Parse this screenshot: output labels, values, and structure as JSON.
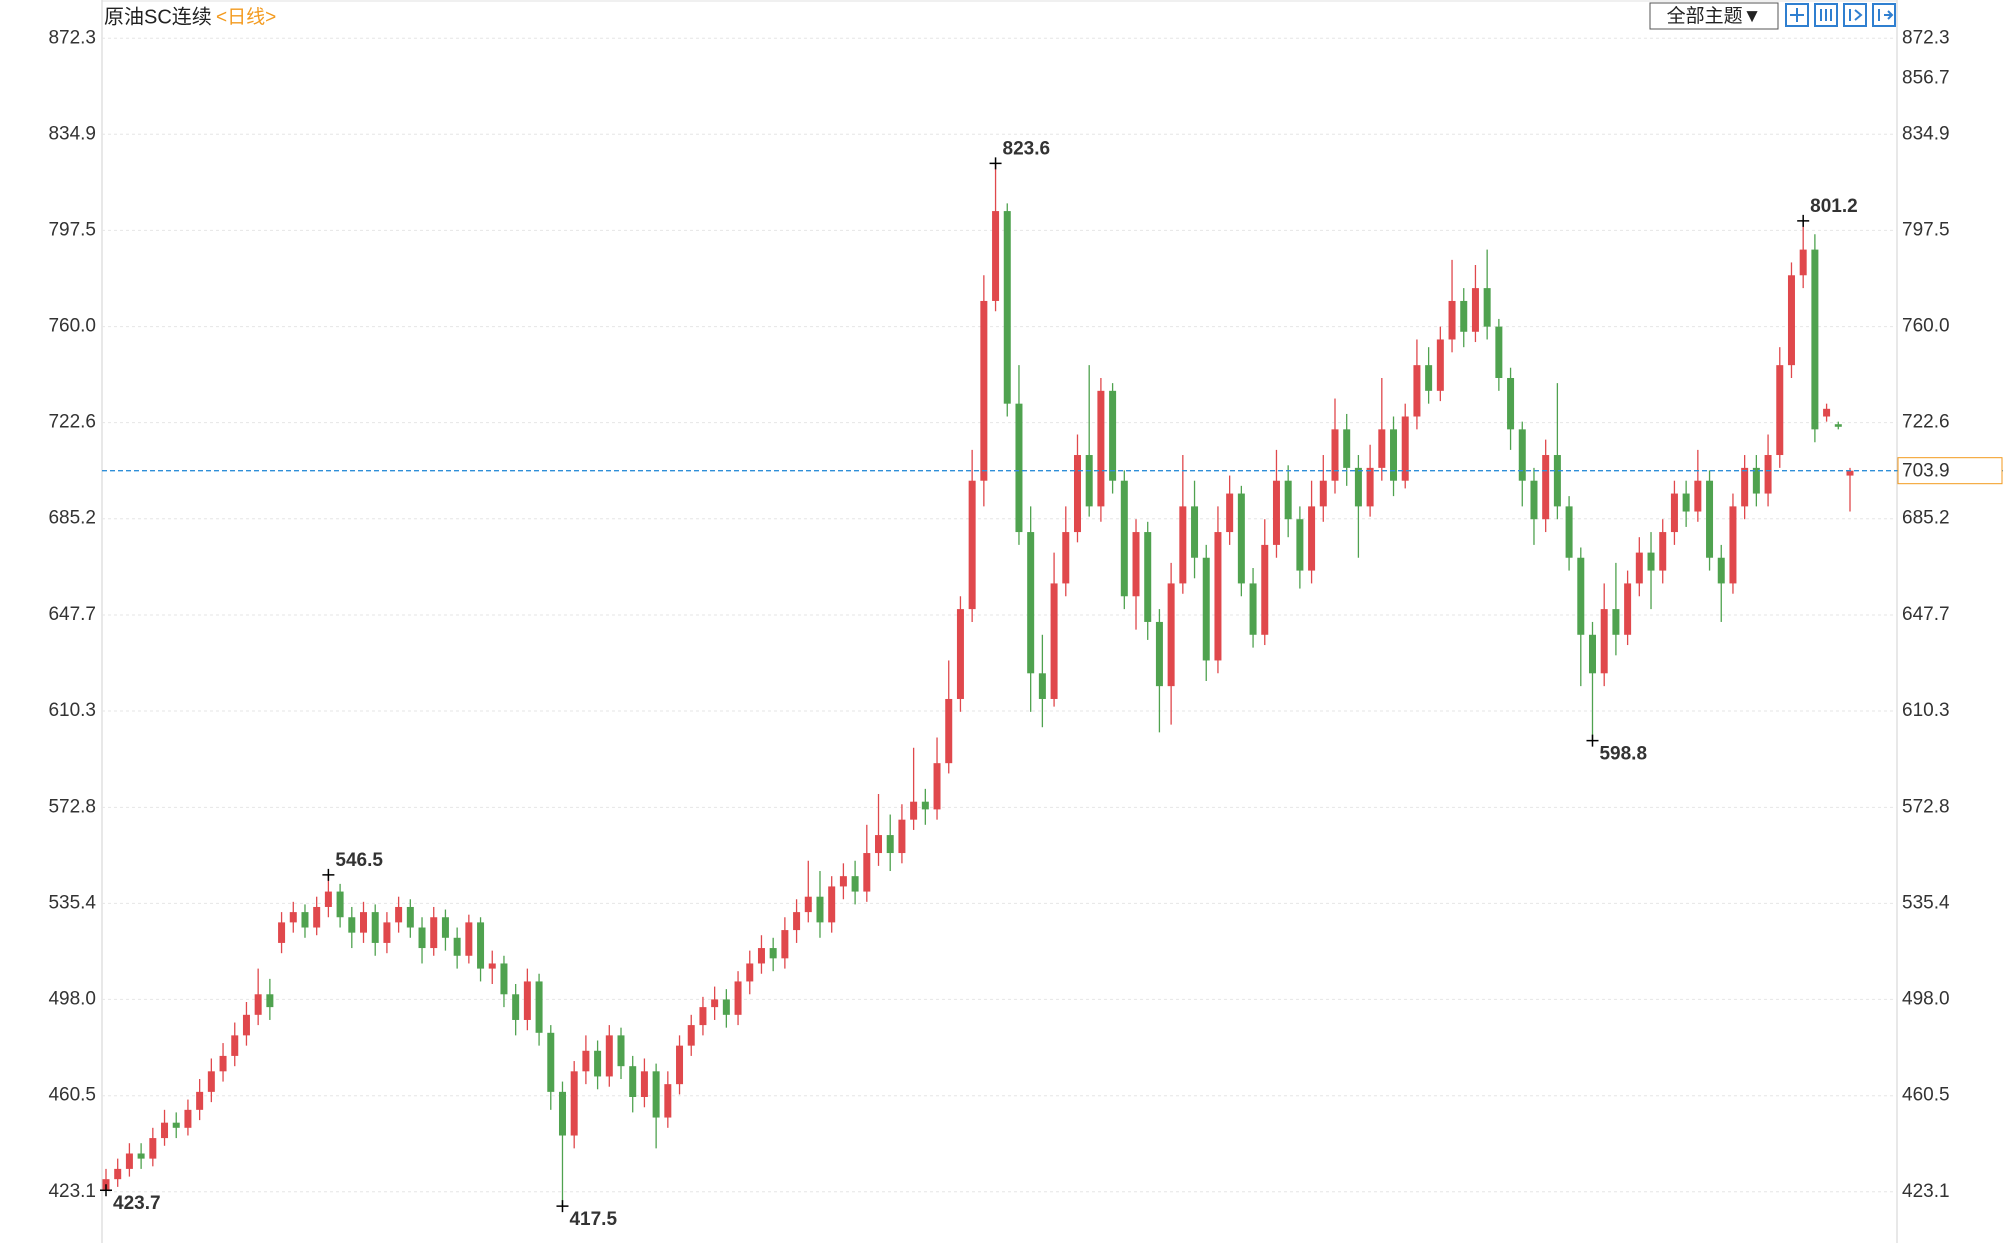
{
  "chart_data": {
    "type": "candlestick",
    "title": "原油SC连续",
    "period": "<日线>",
    "theme_button": "全部主题▼",
    "up_color": "#e0484c",
    "down_color": "#4fa24f",
    "price_line_color": "#2f8fd8",
    "price_box_color": "#f39a1e",
    "ylim": [
      404.7,
      887.2
    ],
    "yticks": [
      423.1,
      460.5,
      {
        "value": 498,
        "label": "498.0"
      },
      535.4,
      572.8,
      610.3,
      647.7,
      685.2,
      722.6,
      {
        "value": 760,
        "label": "760.0"
      },
      797.5,
      834.9,
      872.3
    ],
    "grid": true,
    "last_price": 703.9,
    "marker_price": 856.7,
    "high_labels": [
      546.5,
      823.6,
      801.2
    ],
    "low_labels": [
      423.7,
      417.5,
      598.8
    ],
    "open": [
      424,
      428,
      432,
      438,
      436,
      444,
      450,
      448,
      455,
      462,
      470,
      476,
      484,
      492,
      500,
      520,
      528,
      532,
      526,
      534,
      540,
      530,
      524,
      532,
      520,
      528,
      534,
      526,
      518,
      530,
      522,
      515,
      528,
      510,
      512,
      500,
      490,
      505,
      485,
      462,
      445,
      470,
      478,
      468,
      484,
      472,
      460,
      470,
      452,
      465,
      480,
      488,
      495,
      498,
      492,
      505,
      512,
      518,
      514,
      525,
      532,
      538,
      528,
      542,
      546,
      540,
      555,
      562,
      555,
      568,
      575,
      572,
      590,
      615,
      650,
      700,
      770,
      805,
      730,
      680,
      625,
      615,
      660,
      680,
      710,
      690,
      735,
      700,
      655,
      680,
      645,
      620,
      660,
      690,
      670,
      630,
      680,
      695,
      660,
      640,
      675,
      700,
      685,
      665,
      690,
      700,
      720,
      705,
      690,
      705,
      720,
      700,
      725,
      745,
      735,
      755,
      770,
      758,
      775,
      760,
      740,
      720,
      700,
      685,
      710,
      690,
      670,
      640,
      625,
      650,
      640,
      660,
      672,
      665,
      680,
      695,
      688,
      700,
      670,
      660,
      690,
      705,
      695,
      710,
      745,
      780,
      790,
      725,
      722,
      702
    ],
    "high": [
      432,
      436,
      442,
      442,
      448,
      455,
      454,
      459,
      467,
      475,
      481,
      489,
      497,
      510,
      506,
      532,
      536,
      535,
      538,
      546.5,
      543,
      534,
      536,
      535,
      532,
      538,
      537,
      530,
      534,
      533,
      526,
      531,
      530,
      517,
      515,
      504,
      510,
      508,
      488,
      466,
      474,
      484,
      482,
      488,
      487,
      476,
      475,
      473,
      470,
      484,
      492,
      499,
      503,
      502,
      509,
      517,
      523,
      522,
      530,
      537,
      552,
      548,
      546,
      551,
      552,
      566,
      578,
      570,
      574,
      596,
      580,
      600,
      630,
      655,
      712,
      780,
      823.6,
      808,
      745,
      690,
      640,
      672,
      690,
      718,
      745,
      740,
      738,
      704,
      685,
      684,
      650,
      668,
      710,
      700,
      675,
      690,
      702,
      698,
      666,
      685,
      712,
      706,
      690,
      700,
      710,
      732,
      726,
      710,
      714,
      740,
      725,
      730,
      755,
      752,
      760,
      786,
      775,
      784,
      790,
      763,
      744,
      723,
      705,
      716,
      738,
      694,
      674,
      645,
      660,
      668,
      665,
      678,
      680,
      685,
      700,
      700,
      712,
      704,
      675,
      695,
      710,
      710,
      718,
      752,
      785,
      801.2,
      796,
      730,
      723,
      705
    ],
    "low": [
      423.7,
      425,
      429,
      432,
      433,
      441,
      444,
      445,
      451,
      458,
      466,
      472,
      480,
      488,
      490,
      516,
      524,
      522,
      523,
      530,
      526,
      518,
      520,
      515,
      516,
      524,
      522,
      512,
      515,
      517,
      510,
      512,
      505,
      504,
      495,
      484,
      486,
      480,
      455,
      417.5,
      440,
      465,
      463,
      464,
      467,
      454,
      456,
      440,
      448,
      461,
      476,
      484,
      490,
      487,
      488,
      500,
      508,
      509,
      510,
      520,
      528,
      522,
      524,
      537,
      535,
      536,
      550,
      548,
      551,
      564,
      566,
      568,
      586,
      610,
      645,
      690,
      766,
      725,
      675,
      610,
      604,
      612,
      655,
      676,
      686,
      684,
      695,
      650,
      642,
      638,
      602,
      605,
      656,
      662,
      622,
      625,
      675,
      655,
      635,
      636,
      670,
      678,
      658,
      660,
      684,
      695,
      698,
      670,
      686,
      700,
      694,
      697,
      720,
      730,
      731,
      750,
      752,
      754,
      755,
      735,
      712,
      690,
      675,
      680,
      685,
      665,
      620,
      598.8,
      620,
      632,
      636,
      655,
      650,
      660,
      675,
      682,
      684,
      665,
      645,
      656,
      685,
      690,
      690,
      705,
      740,
      775,
      715,
      723,
      720,
      688
    ],
    "close": [
      428,
      432,
      438,
      436,
      444,
      450,
      448,
      455,
      462,
      470,
      476,
      484,
      492,
      500,
      495,
      528,
      532,
      526,
      534,
      540,
      530,
      524,
      532,
      520,
      528,
      534,
      526,
      518,
      530,
      522,
      515,
      528,
      510,
      512,
      500,
      490,
      505,
      485,
      462,
      445,
      470,
      478,
      468,
      484,
      472,
      460,
      470,
      452,
      465,
      480,
      488,
      495,
      498,
      492,
      505,
      512,
      518,
      514,
      525,
      532,
      538,
      528,
      542,
      546,
      540,
      555,
      562,
      555,
      568,
      575,
      572,
      590,
      615,
      650,
      700,
      770,
      805,
      730,
      680,
      625,
      615,
      660,
      680,
      710,
      690,
      735,
      700,
      655,
      680,
      645,
      620,
      660,
      690,
      670,
      630,
      680,
      695,
      660,
      640,
      675,
      700,
      685,
      665,
      690,
      700,
      720,
      705,
      690,
      705,
      720,
      700,
      725,
      745,
      735,
      755,
      770,
      758,
      775,
      760,
      740,
      720,
      700,
      685,
      710,
      690,
      670,
      640,
      625,
      650,
      640,
      660,
      672,
      665,
      680,
      695,
      688,
      700,
      670,
      660,
      690,
      705,
      695,
      710,
      745,
      780,
      790,
      720,
      728,
      721,
      703.9
    ]
  }
}
